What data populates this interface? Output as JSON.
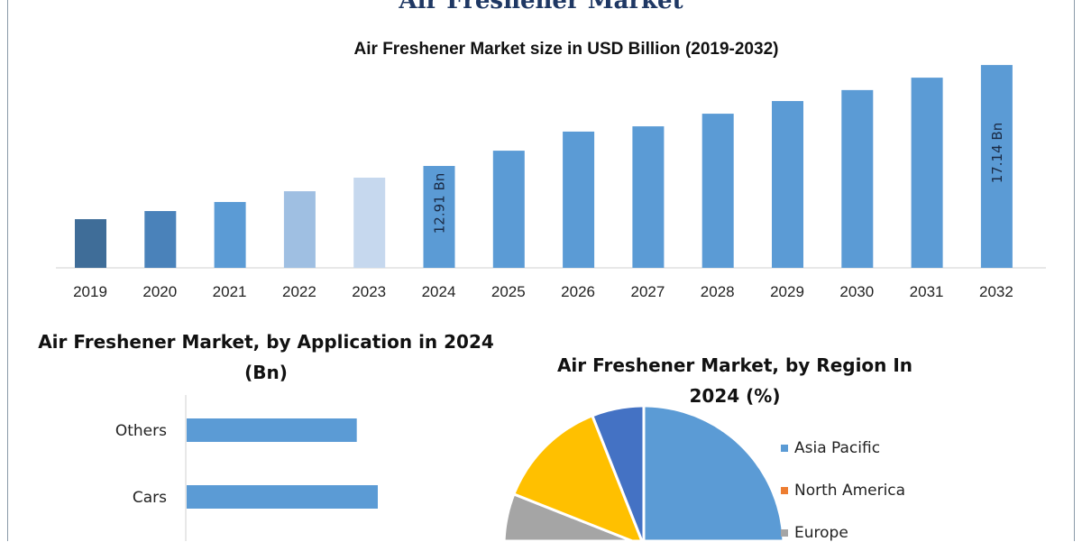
{
  "header": {
    "title": "Air Freshener Market"
  },
  "chart_data": [
    {
      "type": "bar",
      "title": "Air Freshener Market size in USD Billion (2019-2032)",
      "xlabel": "",
      "ylabel": "",
      "categories": [
        "2019",
        "2020",
        "2021",
        "2022",
        "2023",
        "2024",
        "2025",
        "2026",
        "2027",
        "2028",
        "2029",
        "2030",
        "2031",
        "2032"
      ],
      "values": [
        10.68,
        11.02,
        11.4,
        11.85,
        12.42,
        12.91,
        13.55,
        14.35,
        14.57,
        15.1,
        15.63,
        16.09,
        16.61,
        17.14
      ],
      "bar_colors": [
        "#3f6d98",
        "#4a82ba",
        "#5b9bd5",
        "#9fbfe2",
        "#c6d8ee",
        "#5b9bd5",
        "#5b9bd5",
        "#5b9bd5",
        "#5b9bd5",
        "#5b9bd5",
        "#5b9bd5",
        "#5b9bd5",
        "#5b9bd5",
        "#5b9bd5"
      ],
      "data_labels": {
        "2024": "12.91 Bn",
        "2032": "17.14 Bn"
      },
      "grid": false
    },
    {
      "type": "bar",
      "orientation": "horizontal",
      "title": "Air Freshener Market, by Application in 2024 (Bn)",
      "categories": [
        "Others",
        "Cars"
      ],
      "relative_values": [
        89,
        100
      ],
      "color": "#5b9bd5"
    },
    {
      "type": "pie",
      "title": "Air Freshener Market, by Region In 2024 (%)",
      "slices": [
        {
          "name": "Asia Pacific",
          "value": 49,
          "color": "#5b9bd5"
        },
        {
          "name": "North America",
          "value": 15,
          "color": "#ed7d31"
        },
        {
          "name": "Europe",
          "value": 17,
          "color": "#a5a5a5"
        },
        {
          "name": "",
          "value": 13,
          "color": "#ffc000"
        },
        {
          "name": "",
          "value": 6,
          "color": "#4472c4"
        }
      ],
      "legend_position": "right"
    }
  ]
}
